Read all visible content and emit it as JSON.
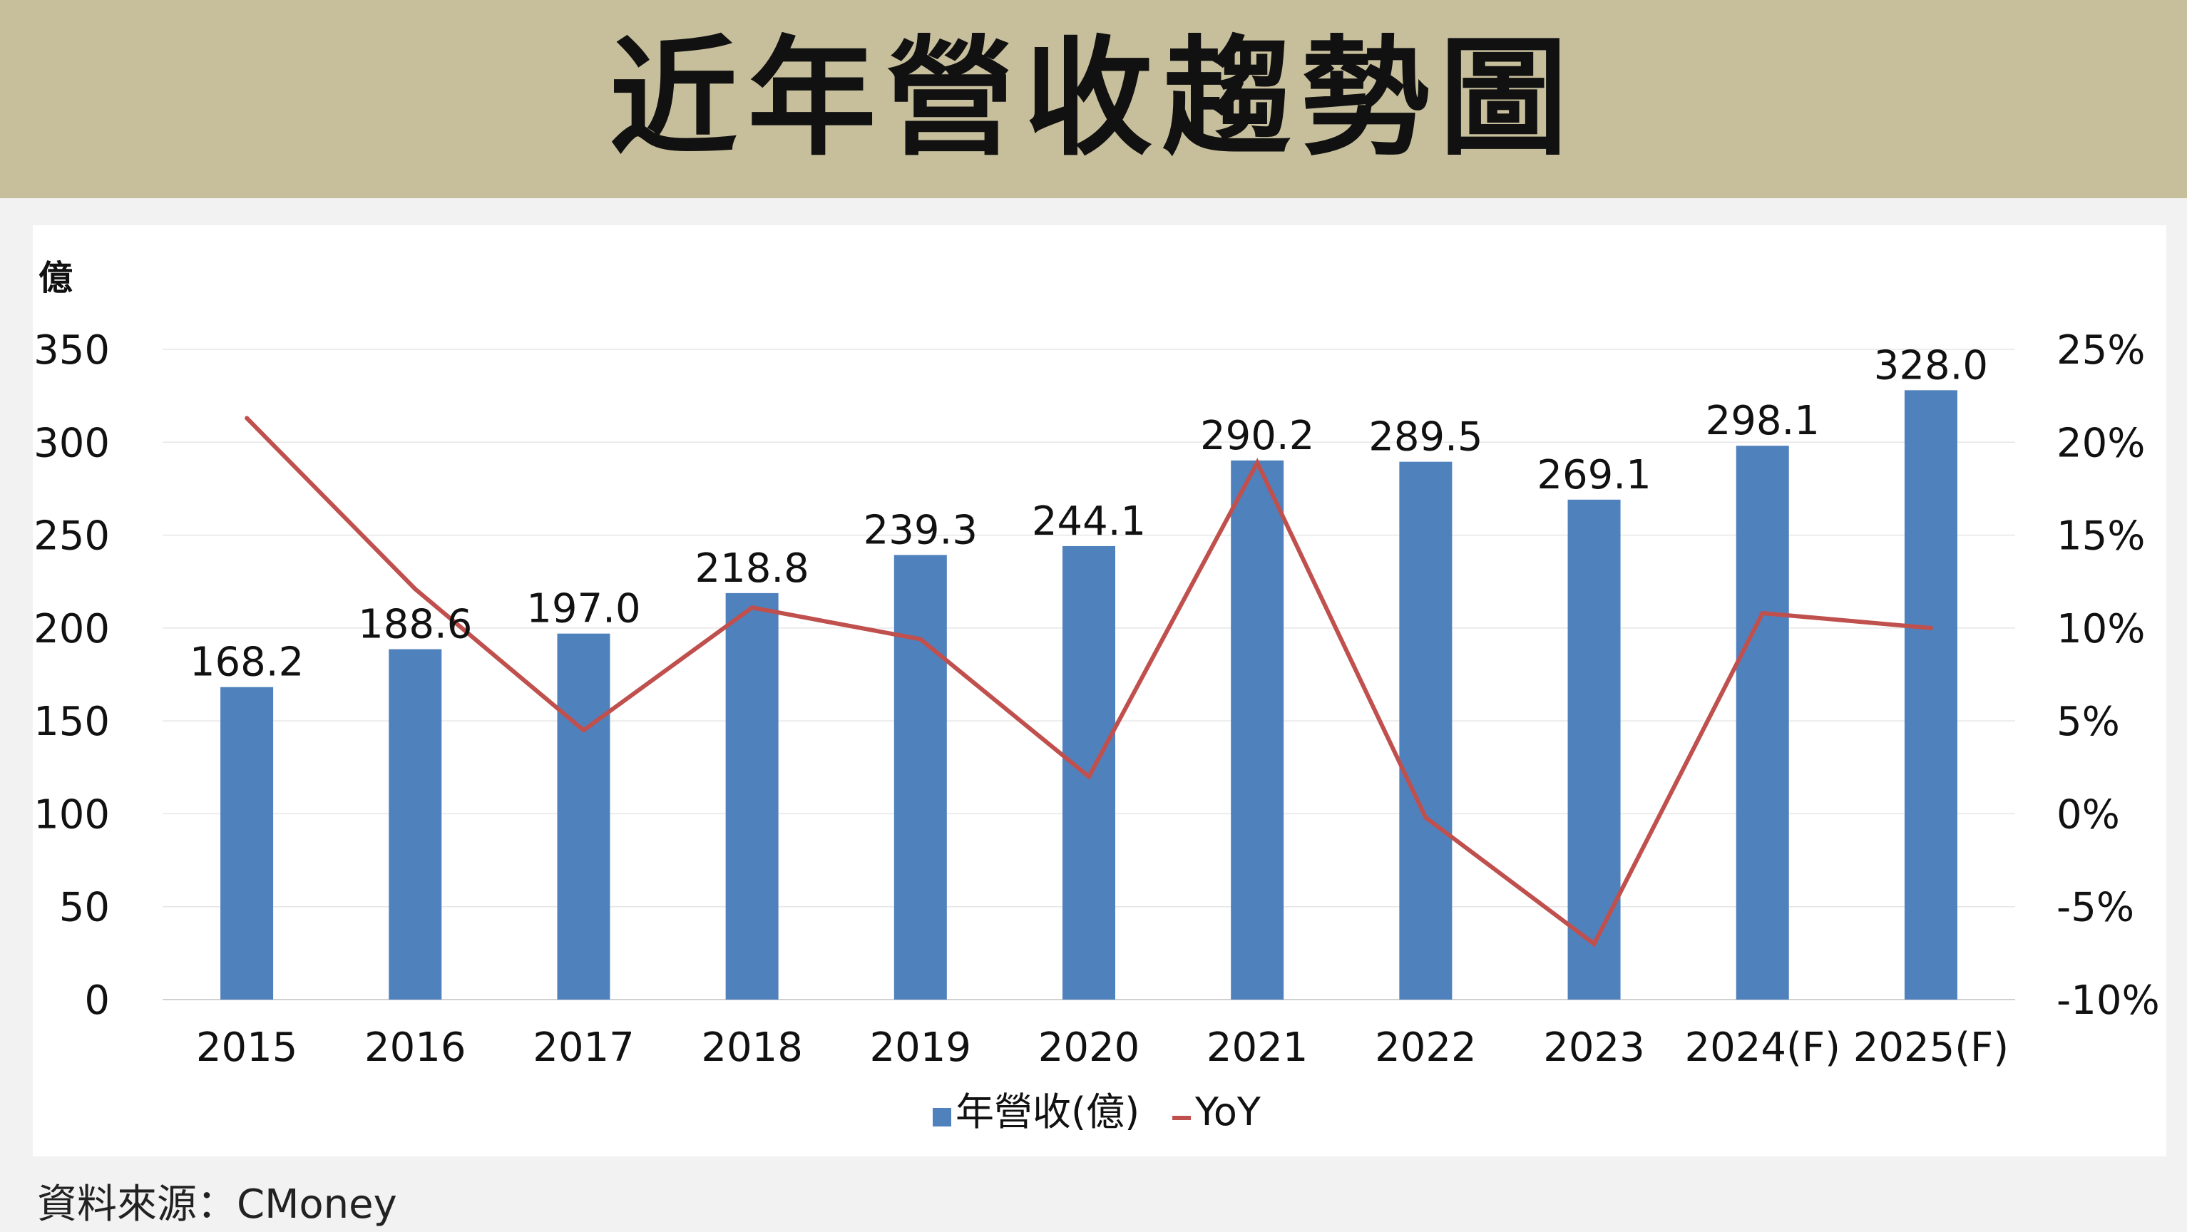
{
  "title": "近年營收趨勢圖",
  "source": "資料來源：CMoney",
  "colors": {
    "banner": "#c7bf9c",
    "bar": "#4f81bd",
    "line": "#c0504d"
  },
  "chart_data": {
    "type": "bar",
    "categories": [
      "2015",
      "2016",
      "2017",
      "2018",
      "2019",
      "2020",
      "2021",
      "2022",
      "2023",
      "2024(F)",
      "2025(F)"
    ],
    "series": [
      {
        "name": "年營收(億)",
        "type": "bar",
        "axis": "left",
        "values": [
          168.2,
          188.6,
          197.0,
          218.8,
          239.3,
          244.1,
          290.2,
          289.5,
          269.1,
          298.1,
          328.0
        ]
      },
      {
        "name": "YoY",
        "type": "line",
        "axis": "right",
        "values": [
          21.3,
          12.1,
          4.5,
          11.1,
          9.4,
          2.0,
          18.9,
          -0.2,
          -7.0,
          10.8,
          10.0
        ]
      }
    ],
    "data_labels": [
      "168.2",
      "188.6",
      "197.0",
      "218.8",
      "239.3",
      "244.1",
      "290.2",
      "289.5",
      "269.1",
      "298.1",
      "328.0"
    ],
    "ylabel": "億",
    "ylim": [
      0,
      350
    ],
    "y_ticks": [
      0,
      50,
      100,
      150,
      200,
      250,
      300,
      350
    ],
    "y_tick_labels": [
      "0",
      "50",
      "100",
      "150",
      "200",
      "250",
      "300",
      "350"
    ],
    "y2lim": [
      -10,
      25
    ],
    "y2_ticks": [
      -10,
      -5,
      0,
      5,
      10,
      15,
      20,
      25
    ],
    "y2_tick_labels": [
      "-10%",
      "-5%",
      "0%",
      "5%",
      "10%",
      "15%",
      "20%",
      "25%"
    ],
    "grid": true,
    "legend": "bottom",
    "legend_entries": [
      "年營收(億)",
      "YoY"
    ]
  }
}
